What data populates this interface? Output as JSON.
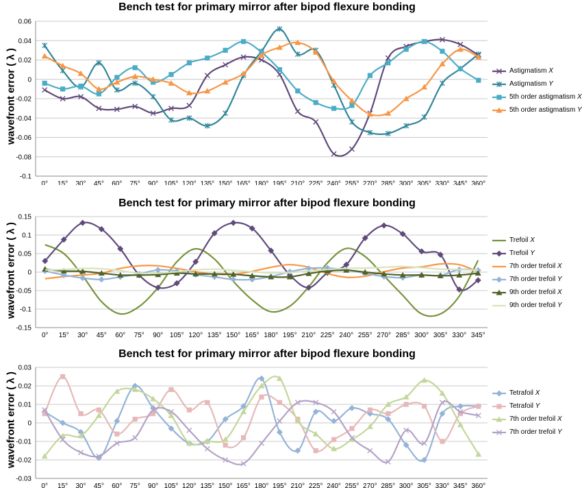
{
  "chart_data": [
    {
      "type": "line",
      "title": "Bench test for primary mirror after bipod flexure bonding",
      "ylabel": "wavefront error ( λ )",
      "ylim": [
        -0.1,
        0.06
      ],
      "yticks": [
        "0.06",
        "0.04",
        "0.02",
        "0",
        "-0.02",
        "-0.04",
        "-0.06",
        "-0.08",
        "-0.1"
      ],
      "categories": [
        "0°",
        "15°",
        "30°",
        "45°",
        "60°",
        "75°",
        "90°",
        "105°",
        "120°",
        "135°",
        "150°",
        "165°",
        "180°",
        "195°",
        "210°",
        "225°",
        "240°",
        "255°",
        "270°",
        "285°",
        "300°",
        "305°",
        "330°",
        "345°",
        "360°"
      ],
      "series": [
        {
          "name": "Astigmatism",
          "name_italic": "X",
          "color": "#60497a",
          "marker": "x",
          "values": [
            -0.011,
            -0.02,
            -0.018,
            -0.03,
            -0.031,
            -0.028,
            -0.035,
            -0.03,
            -0.027,
            0.004,
            0.015,
            0.023,
            0.02,
            0.005,
            -0.033,
            -0.044,
            -0.077,
            -0.072,
            -0.035,
            0.022,
            0.034,
            0.039,
            0.041,
            0.036,
            0.025
          ]
        },
        {
          "name": "Astigmatism",
          "name_italic": "Y",
          "color": "#31869b",
          "marker": "star",
          "values": [
            0.035,
            0.009,
            -0.008,
            0.017,
            -0.011,
            -0.004,
            -0.018,
            -0.042,
            -0.04,
            -0.048,
            -0.035,
            0.004,
            0.029,
            0.052,
            0.026,
            0.03,
            -0.006,
            -0.044,
            -0.055,
            -0.056,
            -0.048,
            -0.039,
            -0.004,
            0.011,
            0.026
          ]
        },
        {
          "name": "5th order astigmatism",
          "name_italic": "X",
          "color": "#4bacc6",
          "marker": "square",
          "values": [
            -0.004,
            -0.01,
            -0.007,
            -0.015,
            0.002,
            0.012,
            -0.003,
            0.005,
            0.017,
            0.022,
            0.03,
            0.039,
            0.028,
            0.01,
            -0.012,
            -0.024,
            -0.03,
            -0.027,
            0.004,
            0.017,
            0.031,
            0.039,
            0.029,
            0.011,
            -0.001
          ]
        },
        {
          "name": "5th order astigmatism",
          "name_italic": "Y",
          "color": "#f79646",
          "marker": "triangle",
          "values": [
            0.024,
            0.014,
            0.006,
            -0.01,
            -0.003,
            0.003,
            0,
            -0.004,
            -0.014,
            -0.012,
            -0.003,
            0.006,
            0.025,
            0.033,
            0.038,
            0.028,
            -0.002,
            -0.022,
            -0.036,
            -0.035,
            -0.02,
            -0.008,
            0.016,
            0.031,
            0.023
          ]
        }
      ]
    },
    {
      "type": "line",
      "title": "Bench test for primary mirror after bipod flexure bonding",
      "ylabel": "wavefront error ( λ )",
      "ylim": [
        -0.15,
        0.15
      ],
      "yticks": [
        "0.15",
        "0.1",
        "0.05",
        "0",
        "-0.05",
        "-0.1",
        "-0.15"
      ],
      "categories": [
        "0°",
        "15°",
        "30°",
        "45°",
        "60°",
        "75°",
        "90°",
        "105°",
        "120°",
        "135°",
        "150°",
        "165°",
        "180°",
        "195°",
        "210°",
        "225°",
        "240°",
        "255°",
        "270°",
        "285°",
        "300°",
        "305°",
        "330°",
        "345°"
      ],
      "series": [
        {
          "name": "Trefoil",
          "name_italic": "X",
          "color": "#77933c",
          "marker": "none",
          "values": [
            0.074,
            0.05,
            -0.01,
            -0.08,
            -0.113,
            -0.093,
            -0.042,
            0.028,
            0.063,
            0.035,
            -0.025,
            -0.075,
            -0.107,
            -0.092,
            -0.04,
            0.025,
            0.064,
            0.042,
            -0.01,
            -0.063,
            -0.113,
            -0.113,
            -0.065,
            0.032
          ]
        },
        {
          "name": "Trefoil",
          "name_italic": "Y",
          "color": "#604a7b",
          "marker": "diamond",
          "values": [
            0.03,
            0.088,
            0.133,
            0.116,
            0.063,
            -0.008,
            -0.042,
            -0.03,
            0.028,
            0.105,
            0.133,
            0.118,
            0.058,
            -0.008,
            -0.042,
            -0.002,
            0.02,
            0.092,
            0.126,
            0.103,
            0.056,
            0.047,
            -0.047,
            -0.022
          ]
        },
        {
          "name": "7th order trefoil",
          "name_italic": "X",
          "color": "#f79646",
          "marker": "none",
          "values": [
            -0.018,
            -0.012,
            -0.008,
            -0.003,
            0.01,
            0.017,
            0.017,
            0.01,
            0.001,
            -0.006,
            -0.006,
            0.002,
            0.013,
            0.02,
            0.013,
            -0.004,
            -0.014,
            -0.011,
            0.001,
            0.011,
            0.014,
            0.022,
            0.02,
            0.001
          ]
        },
        {
          "name": "7th order trefoil",
          "name_italic": "Y",
          "color": "#95b3d7",
          "marker": "diamond",
          "values": [
            0.003,
            -0.008,
            -0.016,
            -0.02,
            -0.013,
            -0.005,
            0.006,
            0.003,
            -0.007,
            -0.013,
            -0.02,
            -0.02,
            -0.012,
            0.001,
            0.01,
            0.011,
            0.006,
            -0.003,
            -0.012,
            -0.015,
            -0.008,
            -0.009,
            0.007,
            0.005
          ]
        },
        {
          "name": "9th order trefoil",
          "name_italic": "X",
          "color": "#4f6228",
          "marker": "triangle",
          "values": [
            0.008,
            0.003,
            0.002,
            -0.003,
            -0.008,
            -0.008,
            -0.007,
            -0.003,
            -0.005,
            -0.005,
            -0.006,
            -0.01,
            -0.013,
            -0.013,
            -0.004,
            0.003,
            0.005,
            0,
            -0.005,
            -0.008,
            -0.008,
            -0.01,
            -0.008,
            -0.003
          ]
        },
        {
          "name": "9th order trefoil",
          "name_italic": "Y",
          "color": "#d7e4bd",
          "marker": "none",
          "values": [
            0.006,
            0.007,
            0.01,
            0.009,
            0.004,
            -0.003,
            -0.003,
            0.001,
            0.006,
            0.008,
            0.005,
            0.001,
            -0.002,
            -0.001,
            0.003,
            0.007,
            0.01,
            0.011,
            0.013,
            0.015,
            0.012,
            0.008,
            0.007,
            0.005
          ]
        }
      ]
    },
    {
      "type": "line",
      "title": "Bench test for primary mirror after bipod flexure bonding",
      "ylabel": "wavefront error ( λ )",
      "ylim": [
        -0.03,
        0.03
      ],
      "yticks": [
        "0.03",
        "0.02",
        "0.01",
        "0",
        "-0.01",
        "-0.02",
        "-0.03"
      ],
      "categories": [
        "0°",
        "15°",
        "30°",
        "45°",
        "60°",
        "75°",
        "90°",
        "105°",
        "120°",
        "135°",
        "150°",
        "165°",
        "180°",
        "195°",
        "210°",
        "225°",
        "240°",
        "255°",
        "270°",
        "285°",
        "300°",
        "305°",
        "330°",
        "345°",
        "360°"
      ],
      "series": [
        {
          "name": "Tetrafoil",
          "name_italic": "X",
          "color": "#95b3d7",
          "marker": "diamond",
          "values": [
            0.006,
            0,
            -0.005,
            -0.019,
            0.001,
            0.02,
            0.008,
            -0.003,
            -0.011,
            -0.01,
            0.002,
            0.009,
            0.024,
            -0.005,
            -0.015,
            0.006,
            0.001,
            0.008,
            0.005,
            0.002,
            -0.012,
            -0.02,
            0.005,
            0.009,
            0.009
          ]
        },
        {
          "name": "Tetrafoil",
          "name_italic": "Y",
          "color": "#e6b9b8",
          "marker": "square",
          "values": [
            0.005,
            0.025,
            0.005,
            0.007,
            -0.006,
            0.002,
            0.005,
            0.018,
            0.007,
            0.011,
            -0.012,
            -0.008,
            0.014,
            0.011,
            0.002,
            -0.015,
            -0.009,
            -0.003,
            0.007,
            0.005,
            0.01,
            0.009,
            -0.01,
            0.005,
            0.009
          ]
        },
        {
          "name": "7th order trefoil",
          "name_italic": "X",
          "color": "#c3d69b",
          "marker": "triangle",
          "values": [
            -0.018,
            -0.007,
            -0.007,
            0.004,
            0.017,
            0.018,
            0.013,
            0.004,
            -0.011,
            -0.01,
            -0.009,
            0.006,
            0.02,
            0.024,
            0.001,
            -0.006,
            -0.014,
            -0.009,
            -0.002,
            0.01,
            0.014,
            0.023,
            0.016,
            -0.001,
            -0.017
          ]
        },
        {
          "name": "7th order trefoil",
          "name_italic": "Y",
          "color": "#b3a2c7",
          "marker": "x",
          "values": [
            0.007,
            -0.009,
            -0.016,
            -0.018,
            -0.011,
            -0.008,
            0.007,
            0.006,
            -0.004,
            -0.014,
            -0.02,
            -0.022,
            -0.011,
            0.001,
            0.011,
            0.011,
            0.006,
            -0.008,
            -0.015,
            -0.021,
            -0.004,
            -0.011,
            0.011,
            0.006,
            0.004
          ]
        }
      ]
    }
  ]
}
